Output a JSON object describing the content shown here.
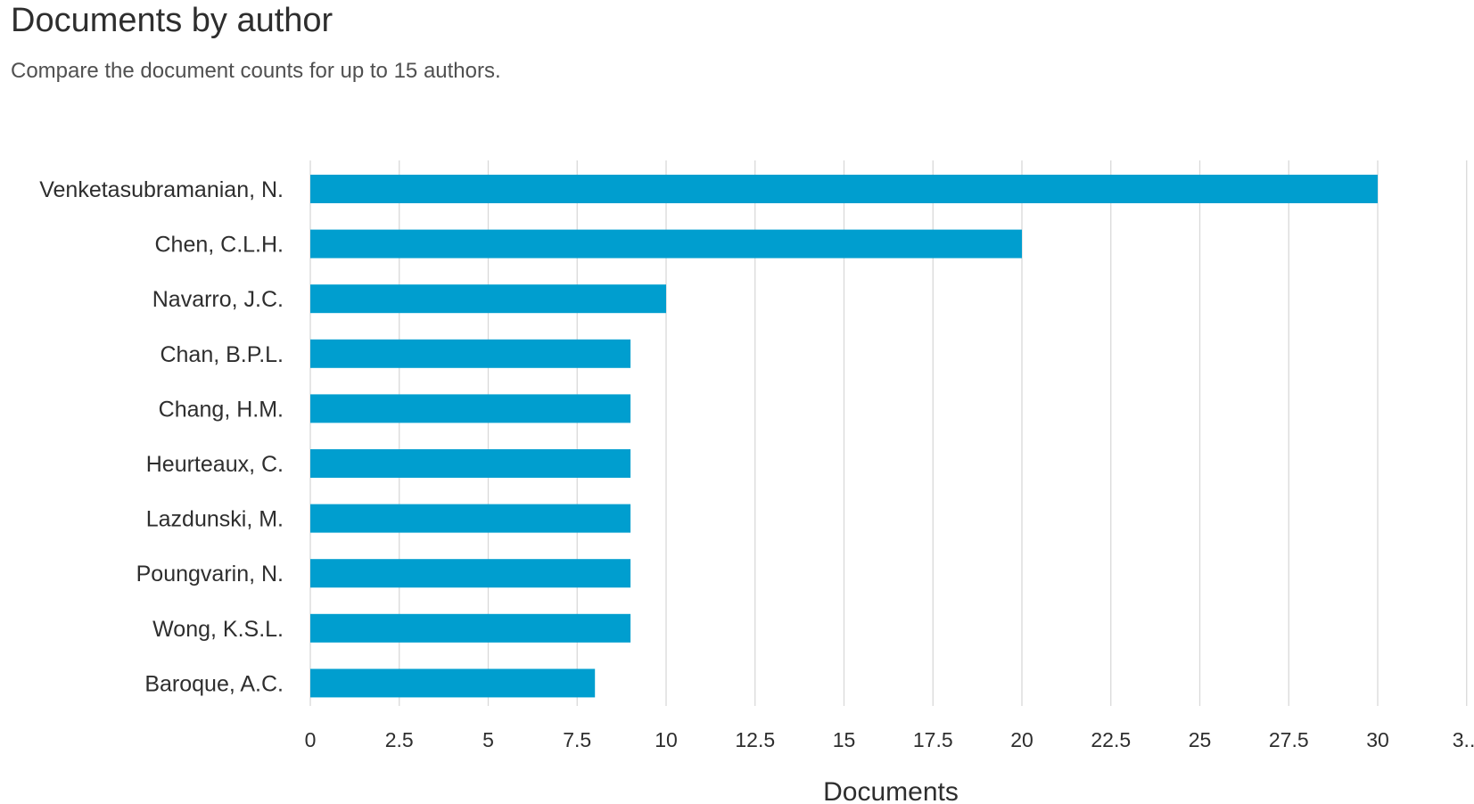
{
  "header": {
    "title": "Documents by author",
    "subtitle": "Compare the document counts for up to 15 authors."
  },
  "colors": {
    "bar": "#009ecf",
    "grid": "#d9d9d9"
  },
  "chart_data": {
    "type": "bar",
    "orientation": "horizontal",
    "categories": [
      "Venketasubramanian, N.",
      "Chen, C.L.H.",
      "Navarro, J.C.",
      "Chan, B.P.L.",
      "Chang, H.M.",
      "Heurteaux, C.",
      "Lazdunski, M.",
      "Poungvarin, N.",
      "Wong, K.S.L.",
      "Baroque, A.C."
    ],
    "values": [
      30,
      20,
      10,
      9,
      9,
      9,
      9,
      9,
      9,
      8
    ],
    "xlabel": "Documents",
    "ylabel": "",
    "xlim": [
      0,
      32.5
    ],
    "xticks": [
      "0",
      "2.5",
      "5",
      "7.5",
      "10",
      "12.5",
      "15",
      "17.5",
      "20",
      "22.5",
      "25",
      "27.5",
      "30",
      "3..."
    ],
    "grid": "vertical"
  }
}
